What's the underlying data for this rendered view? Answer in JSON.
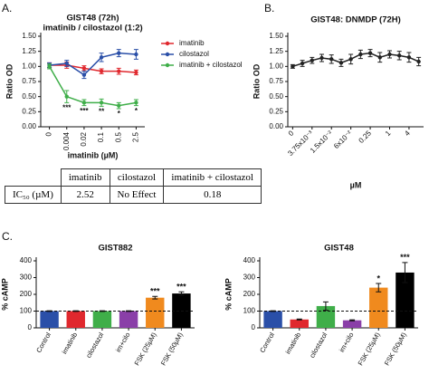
{
  "chart_data": [
    {
      "type": "line",
      "panel_label": "A.",
      "title": "GIST48 (72h)",
      "subtitle": "imatinib / cilostazol (1:2)",
      "x_label": "imatinib (µM)",
      "y_label": "Ratio OD",
      "categories": [
        "0",
        "0.004",
        "0.02",
        "0.1",
        "0.5",
        "2.5"
      ],
      "ylim": [
        0,
        1.5
      ],
      "yticks": [
        {
          "value": 0,
          "label": "0.00"
        },
        {
          "value": 0.25,
          "label": "0.25"
        },
        {
          "value": 0.5,
          "label": "0.50"
        },
        {
          "value": 0.75,
          "label": "0.75"
        },
        {
          "value": 1,
          "label": "1.00"
        },
        {
          "value": 1.25,
          "label": "1.25"
        },
        {
          "value": 1.5,
          "label": "1.50"
        }
      ],
      "legend": "right",
      "series": [
        {
          "name": "imatinib",
          "color": "#e0282e",
          "values": [
            1.02,
            1.02,
            0.97,
            0.92,
            0.92,
            0.9
          ],
          "errors": [
            0.04,
            0.05,
            0.04,
            0.04,
            0.05,
            0.04
          ]
        },
        {
          "name": "cilostazol",
          "color": "#2a4fa8",
          "values": [
            1.02,
            1.05,
            0.86,
            1.15,
            1.22,
            1.2
          ],
          "errors": [
            0.04,
            0.05,
            0.06,
            0.07,
            0.06,
            0.08
          ]
        },
        {
          "name": "imatinib + cilostazol",
          "color": "#3fae49",
          "values": [
            1.0,
            0.5,
            0.4,
            0.4,
            0.35,
            0.4
          ],
          "errors": [
            0.04,
            0.1,
            0.05,
            0.06,
            0.05,
            0.05
          ]
        }
      ],
      "annotations": [
        null,
        "***",
        "***",
        "**",
        "*",
        "*"
      ]
    },
    {
      "type": "line",
      "panel_label": "B.",
      "title": "GIST48: DNMDP (72H)",
      "x_label": "µM",
      "y_label": "Ratio OD",
      "categories": [
        "0",
        null,
        "3.75x10⁻³",
        null,
        "1.5x10⁻²",
        null,
        "6x10⁻²",
        null,
        "0.25",
        null,
        "1",
        null,
        "4",
        null
      ],
      "ylim": [
        0,
        1.5
      ],
      "yticks": [
        {
          "value": 0,
          "label": "0.00"
        },
        {
          "value": 0.25,
          "label": "0.25"
        },
        {
          "value": 0.5,
          "label": "0.50"
        },
        {
          "value": 0.75,
          "label": "0.75"
        },
        {
          "value": 1,
          "label": "1.00"
        },
        {
          "value": 1.25,
          "label": "1.25"
        },
        {
          "value": 1.5,
          "label": "1.50"
        }
      ],
      "color": "#222222",
      "values": [
        1.0,
        1.05,
        1.1,
        1.14,
        1.12,
        1.06,
        1.12,
        1.2,
        1.22,
        1.15,
        1.2,
        1.18,
        1.15,
        1.08
      ],
      "errors": [
        0.03,
        0.05,
        0.05,
        0.06,
        0.07,
        0.06,
        0.08,
        0.07,
        0.06,
        0.08,
        0.06,
        0.07,
        0.08,
        0.07
      ]
    },
    {
      "type": "bar",
      "panel_label": "C.",
      "title": "GIST882",
      "y_label": "% cAMP",
      "categories": [
        "Control",
        "imatinib",
        "cilostazol",
        "im+cilo",
        "FSK (25µM)",
        "FSK (50µM)"
      ],
      "values": [
        100,
        100,
        100,
        100,
        180,
        205
      ],
      "errors": [
        2,
        2,
        2,
        2,
        8,
        10
      ],
      "colors": [
        "#2a4fa8",
        "#e0282e",
        "#3fae49",
        "#8a3fa8",
        "#f08a1e",
        "#000000"
      ],
      "ylim": [
        0,
        400
      ],
      "yticks": [
        0,
        100,
        200,
        300,
        400
      ],
      "reference_line": 100,
      "annotations": [
        null,
        null,
        null,
        null,
        "***",
        "***"
      ]
    },
    {
      "type": "bar",
      "title": "GIST48",
      "y_label": "% cAMP",
      "categories": [
        "Control",
        "imatinib",
        "cilostazol",
        "im+cilo",
        "FSK (25µM)",
        "FSK (50µM)"
      ],
      "values": [
        100,
        50,
        130,
        45,
        240,
        330
      ],
      "errors": [
        2,
        3,
        25,
        3,
        25,
        60
      ],
      "colors": [
        "#2a4fa8",
        "#e0282e",
        "#3fae49",
        "#8a3fa8",
        "#f08a1e",
        "#000000"
      ],
      "ylim": [
        0,
        400
      ],
      "yticks": [
        0,
        100,
        200,
        300,
        400
      ],
      "reference_line": 100,
      "annotations": [
        null,
        null,
        null,
        null,
        "*",
        "***"
      ]
    }
  ],
  "table": {
    "header": [
      "imatinib",
      "cilostazol",
      "imatinib + cilostazol"
    ],
    "rows": [
      [
        "IC₅₀ (µM)",
        "2.52",
        "No Effect",
        "0.18"
      ]
    ]
  }
}
